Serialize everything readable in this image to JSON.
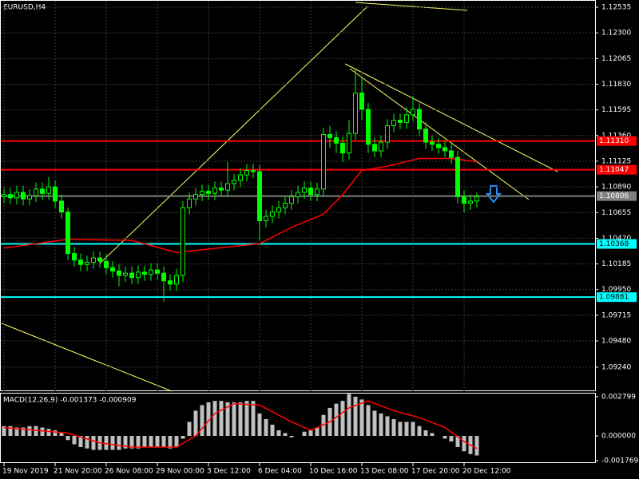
{
  "chart_data": [
    {
      "type": "candlestick",
      "title": "EURUSD,H4",
      "grid": true,
      "color": "#00ff00",
      "open": [
        1.108,
        1.1082,
        1.1079,
        1.1084,
        1.1078,
        1.1081,
        1.1087,
        1.1083,
        1.1089,
        1.1076,
        1.1066,
        1.1028,
        1.1022,
        1.1018,
        1.102,
        1.1024,
        1.1021,
        1.1015,
        1.1012,
        1.1008,
        1.101,
        1.1006,
        1.1011,
        1.1009,
        1.1013,
        1.101,
        1.1003,
        1.1,
        1.1008,
        1.107,
        1.1078,
        1.1082,
        1.1085,
        1.1083,
        1.1088,
        1.1086,
        1.1092,
        1.1095,
        1.11,
        1.1104,
        1.1103,
        1.1058,
        1.1062,
        1.1066,
        1.107,
        1.1074,
        1.108,
        1.1084,
        1.1088,
        1.1082,
        1.1087,
        1.1137,
        1.1134,
        1.1129,
        1.112,
        1.1138,
        1.1175,
        1.116,
        1.1128,
        1.1122,
        1.113,
        1.1145,
        1.115,
        1.1148,
        1.1155,
        1.116,
        1.1142,
        1.113,
        1.1128,
        1.1125,
        1.1122,
        1.1116,
        1.108,
        1.1074,
        1.1076
      ],
      "high": [
        1.1088,
        1.1088,
        1.109,
        1.109,
        1.1087,
        1.1093,
        1.1093,
        1.1098,
        1.1095,
        1.1082,
        1.107,
        1.1034,
        1.1028,
        1.1026,
        1.103,
        1.103,
        1.1027,
        1.1021,
        1.1018,
        1.1016,
        1.1016,
        1.1017,
        1.1017,
        1.1019,
        1.1019,
        1.1016,
        1.1009,
        1.1014,
        1.1076,
        1.1084,
        1.1088,
        1.1091,
        1.1091,
        1.1094,
        1.1094,
        1.1112,
        1.1101,
        1.1106,
        1.111,
        1.111,
        1.1109,
        1.1068,
        1.1072,
        1.1076,
        1.108,
        1.1086,
        1.109,
        1.1094,
        1.1094,
        1.1093,
        1.1143,
        1.1145,
        1.114,
        1.1135,
        1.115,
        1.1198,
        1.119,
        1.1166,
        1.1134,
        1.1136,
        1.1151,
        1.1156,
        1.1156,
        1.1162,
        1.1172,
        1.1166,
        1.1148,
        1.1136,
        1.1134,
        1.1131,
        1.1128,
        1.1122,
        1.1086,
        1.1082,
        1.1084
      ],
      "low": [
        1.1074,
        1.1073,
        1.1073,
        1.1072,
        1.1072,
        1.1075,
        1.1077,
        1.1077,
        1.107,
        1.106,
        1.1022,
        1.1016,
        1.1012,
        1.1012,
        1.1014,
        1.1015,
        1.1009,
        1.1006,
        1.0998,
        1.1002,
        1.1,
        1.1,
        1.1003,
        1.1003,
        1.1004,
        1.0984,
        1.0994,
        1.0994,
        1.1002,
        1.1064,
        1.1072,
        1.1076,
        1.1077,
        1.1077,
        1.108,
        1.108,
        1.1086,
        1.1089,
        1.1094,
        1.1097,
        1.104,
        1.1052,
        1.1056,
        1.106,
        1.1064,
        1.1068,
        1.1074,
        1.1078,
        1.1076,
        1.1076,
        1.1081,
        1.1125,
        1.112,
        1.1112,
        1.1114,
        1.1132,
        1.115,
        1.112,
        1.1116,
        1.1116,
        1.1124,
        1.1139,
        1.1142,
        1.1142,
        1.1149,
        1.1136,
        1.1124,
        1.1122,
        1.1119,
        1.1116,
        1.111,
        1.1074,
        1.1066,
        1.1068,
        1.107
      ],
      "close": [
        1.1082,
        1.1079,
        1.1084,
        1.1078,
        1.1081,
        1.1087,
        1.1083,
        1.1089,
        1.1076,
        1.1066,
        1.1028,
        1.1022,
        1.1018,
        1.102,
        1.1024,
        1.1021,
        1.1015,
        1.1012,
        1.1008,
        1.101,
        1.1006,
        1.1011,
        1.1009,
        1.1013,
        1.101,
        1.1003,
        1.1,
        1.1008,
        1.107,
        1.1078,
        1.1082,
        1.1085,
        1.1083,
        1.1088,
        1.1086,
        1.1092,
        1.1095,
        1.11,
        1.1104,
        1.1103,
        1.1058,
        1.1062,
        1.1066,
        1.107,
        1.1074,
        1.108,
        1.1084,
        1.1088,
        1.1082,
        1.1087,
        1.1137,
        1.1134,
        1.1129,
        1.112,
        1.1138,
        1.1175,
        1.116,
        1.1128,
        1.1122,
        1.113,
        1.1145,
        1.115,
        1.1148,
        1.1155,
        1.116,
        1.1142,
        1.113,
        1.1128,
        1.1125,
        1.1122,
        1.1116,
        1.108,
        1.1074,
        1.1076,
        1.108
      ],
      "ma": {
        "color": "#ff0000",
        "x": [
          0,
          10,
          20,
          27,
          35,
          40,
          45,
          50,
          53,
          56,
          60,
          65,
          70,
          74
        ],
        "values": [
          1.1033,
          1.1041,
          1.104,
          1.1029,
          1.1034,
          1.1037,
          1.1052,
          1.1064,
          1.1082,
          1.1104,
          1.1108,
          1.1115,
          1.1115,
          1.1112
        ]
      },
      "hlines": [
        {
          "value": 1.1131,
          "label": "1.11310",
          "color": "#ff0000"
        },
        {
          "value": 1.11047,
          "label": "1.11047",
          "color": "#ff0000"
        },
        {
          "value": 1.10806,
          "label": "1.10806",
          "color": "#808080"
        },
        {
          "value": 1.10368,
          "label": "1.10368",
          "color": "#00ffff"
        },
        {
          "value": 1.09881,
          "label": "1.09881",
          "color": "#00ffff"
        }
      ],
      "ylim": [
        1.0902,
        1.12601
      ],
      "yticks": [
        1.12535,
        {
          "value": 1.123,
          "label": "1.12300"
        },
        1.12065,
        {
          "value": 1.1183,
          "label": "1.11830"
        },
        1.11595,
        {
          "value": 1.1136,
          "label": "1.11360"
        },
        1.11125,
        {
          "value": 1.1089,
          "label": "1.10890"
        },
        1.10655,
        {
          "value": 1.1042,
          "label": "1.10420"
        },
        1.10185,
        {
          "value": 1.0995,
          "label": "1.09950"
        },
        1.09715,
        {
          "value": 1.0948,
          "label": "1.09480"
        },
        {
          "value": 1.0924,
          "label": "1.09240"
        }
      ],
      "xticks": [
        {
          "value": 0,
          "label": "19 Nov 2019"
        },
        {
          "value": 8,
          "label": "21 Nov 20:00"
        },
        {
          "value": 16,
          "label": "26 Nov 08:00"
        },
        {
          "value": 24,
          "label": "29 Nov 00:00"
        },
        {
          "value": 32,
          "label": "3 Dec 12:00"
        },
        {
          "value": 40,
          "label": "6 Dec 04:00"
        },
        {
          "value": 48,
          "label": "10 Dec 16:00"
        },
        {
          "value": 56,
          "label": "13 Dec 08:00"
        },
        {
          "value": 64,
          "label": "17 Dec 20:00"
        },
        {
          "value": 72,
          "label": "20 Dec 12:00"
        }
      ]
    },
    {
      "type": "bar",
      "title": "MACD(12,26,9) -0.001373 -0.000909",
      "color": "#c0c0c0",
      "values": [
        0.0007,
        0.0007,
        0.0006,
        0.0006,
        0.0007,
        0.0007,
        0.0006,
        0.0005,
        0.0004,
        0.0002,
        -0.0003,
        -0.0006,
        -0.0008,
        -0.0009,
        -0.001,
        -0.001,
        -0.001,
        -0.001,
        -0.001,
        -0.0009,
        -0.0009,
        -0.0009,
        -0.0008,
        -0.0008,
        -0.0008,
        -0.0008,
        -0.0009,
        -0.0008,
        -0.0002,
        0.001,
        0.0018,
        0.0022,
        0.0024,
        0.0025,
        0.0025,
        0.0024,
        0.0024,
        0.0024,
        0.0025,
        0.0025,
        0.0016,
        0.0012,
        0.0008,
        0.0004,
        0.0002,
        -0.0001,
        0,
        0.0003,
        0.0004,
        0.0006,
        0.0015,
        0.002,
        0.0023,
        0.0025,
        0.003,
        0.0028,
        0.0026,
        0.0022,
        0.0018,
        0.0016,
        0.0014,
        0.0012,
        0.001,
        0.001,
        0.001,
        0.0007,
        0.0004,
        0.0002,
        0,
        -0.0002,
        -0.0004,
        -0.0008,
        -0.0011,
        -0.0013,
        -0.0014
      ],
      "signal": {
        "color": "#ff0000",
        "x": [
          0,
          10,
          15,
          20,
          27,
          30,
          33,
          36,
          40,
          45,
          48,
          51,
          54,
          57,
          61,
          65,
          69,
          72,
          74
        ],
        "values": [
          0.0006,
          0.0002,
          -0.0005,
          -0.0008,
          -0.0008,
          0,
          0.0016,
          0.0023,
          0.0022,
          0.001,
          0.0004,
          0.001,
          0.002,
          0.0025,
          0.0018,
          0.0013,
          0.0006,
          -0.0004,
          -0.0009
        ]
      },
      "ylim": [
        -0.00194,
        0.00308
      ],
      "yticks": [
        0.002799,
        {
          "value": 0,
          "label": "0.000000"
        },
        -0.001769
      ]
    }
  ]
}
